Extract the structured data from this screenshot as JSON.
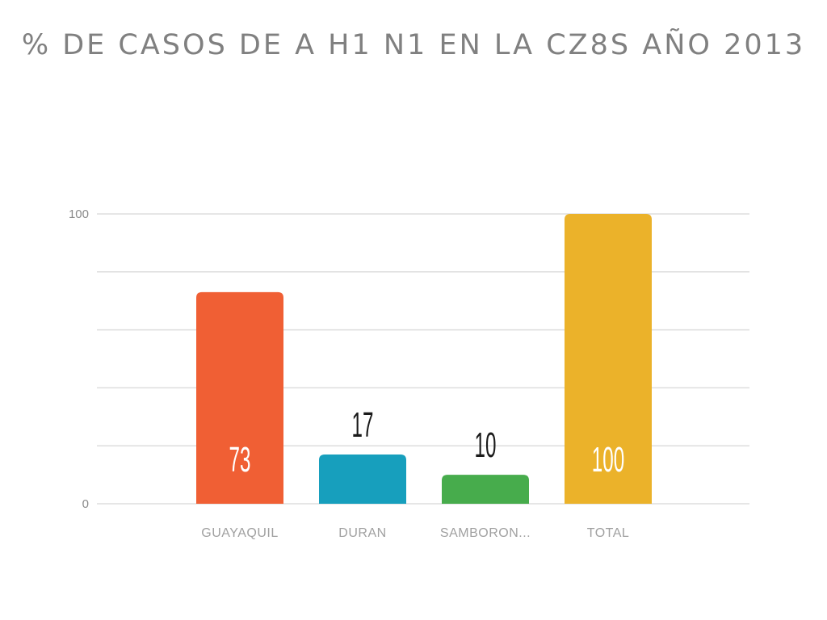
{
  "slide": {
    "title": "% DE CASOS DE A H1 N1 EN LA CZ8S AÑO 2013"
  },
  "chart_data": {
    "type": "bar",
    "title": "% DE CASOS DE A H1 N1 EN LA CZ8S AÑO 2013",
    "categories": [
      "GUAYAQUIL",
      "DURAN",
      "SAMBORON...",
      "TOTAL"
    ],
    "values": [
      73,
      17,
      10,
      100
    ],
    "data_labels": [
      "73",
      "17",
      "10",
      "100"
    ],
    "colors": [
      "#f05f34",
      "#179fbd",
      "#47ac4c",
      "#ebb22a"
    ],
    "label_colors": [
      "#ffffff",
      "#1a1a1a",
      "#1a1a1a",
      "#ffffff"
    ],
    "ylim": [
      0,
      100
    ],
    "yticks": [
      0,
      100
    ],
    "grid": true,
    "grid_color": "#dddddd",
    "xlabel": "",
    "ylabel": ""
  }
}
